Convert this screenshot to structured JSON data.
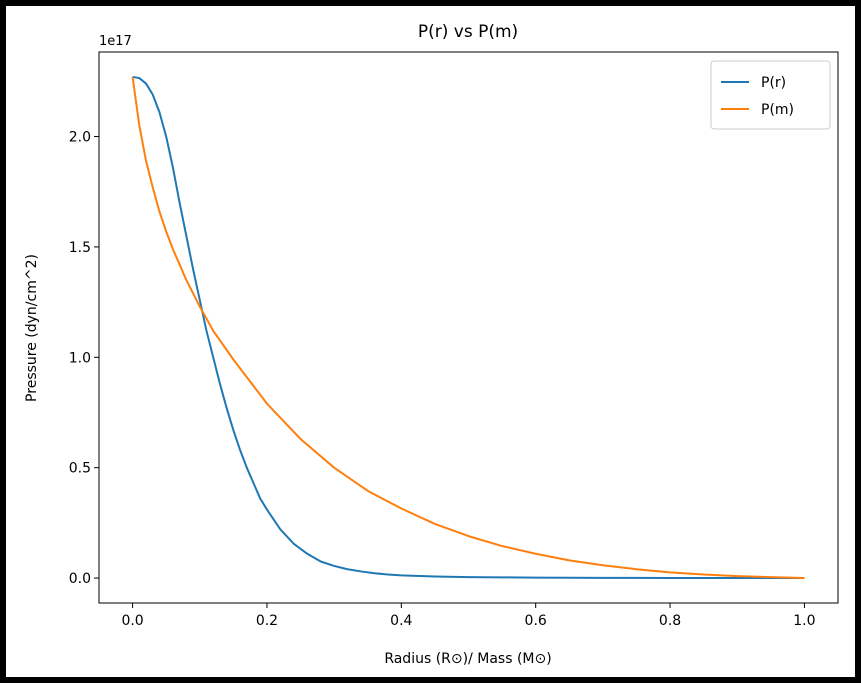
{
  "chart_data": {
    "type": "line",
    "title": "P(r) vs P(m)",
    "xlabel": "Radius (R⊙)/ Mass (M⊙)",
    "ylabel": "Pressure (dyn/cm^2)",
    "y_offset_label": "1e17",
    "xlim": [
      -0.05,
      1.05
    ],
    "ylim": [
      -0.113,
      2.383
    ],
    "x_ticks": [
      0.0,
      0.2,
      0.4,
      0.6,
      0.8,
      1.0
    ],
    "x_tick_labels": [
      "0.0",
      "0.2",
      "0.4",
      "0.6",
      "0.8",
      "1.0"
    ],
    "y_ticks": [
      0.0,
      0.5,
      1.0,
      1.5,
      2.0
    ],
    "y_tick_labels": [
      "0.0",
      "0.5",
      "1.0",
      "1.5",
      "2.0"
    ],
    "grid": false,
    "legend_position": "top-right",
    "series": [
      {
        "name": "P(r)",
        "color": "#1f77b4",
        "x": [
          0.0,
          0.01,
          0.02,
          0.03,
          0.04,
          0.05,
          0.06,
          0.07,
          0.08,
          0.09,
          0.1,
          0.11,
          0.12,
          0.13,
          0.14,
          0.15,
          0.16,
          0.17,
          0.18,
          0.19,
          0.2,
          0.22,
          0.24,
          0.26,
          0.28,
          0.3,
          0.32,
          0.34,
          0.36,
          0.38,
          0.4,
          0.45,
          0.5,
          0.55,
          0.6,
          0.7,
          0.8,
          0.9,
          1.0
        ],
        "y": [
          2.27,
          2.265,
          2.24,
          2.19,
          2.11,
          2.0,
          1.86,
          1.7,
          1.55,
          1.4,
          1.26,
          1.12,
          1.0,
          0.88,
          0.77,
          0.67,
          0.58,
          0.5,
          0.43,
          0.36,
          0.31,
          0.22,
          0.155,
          0.11,
          0.075,
          0.055,
          0.04,
          0.03,
          0.022,
          0.016,
          0.012,
          0.007,
          0.004,
          0.003,
          0.002,
          0.001,
          0.0005,
          0.0002,
          0.0
        ]
      },
      {
        "name": "P(m)",
        "color": "#ff7f0e",
        "x": [
          0.0,
          0.01,
          0.02,
          0.03,
          0.04,
          0.05,
          0.06,
          0.08,
          0.1,
          0.12,
          0.15,
          0.2,
          0.25,
          0.3,
          0.35,
          0.4,
          0.45,
          0.5,
          0.55,
          0.6,
          0.65,
          0.7,
          0.75,
          0.8,
          0.85,
          0.9,
          0.95,
          1.0
        ],
        "y": [
          2.27,
          2.05,
          1.89,
          1.77,
          1.66,
          1.57,
          1.49,
          1.35,
          1.23,
          1.12,
          0.99,
          0.79,
          0.63,
          0.5,
          0.395,
          0.315,
          0.245,
          0.19,
          0.145,
          0.11,
          0.08,
          0.058,
          0.04,
          0.026,
          0.016,
          0.009,
          0.004,
          0.0
        ]
      }
    ]
  }
}
